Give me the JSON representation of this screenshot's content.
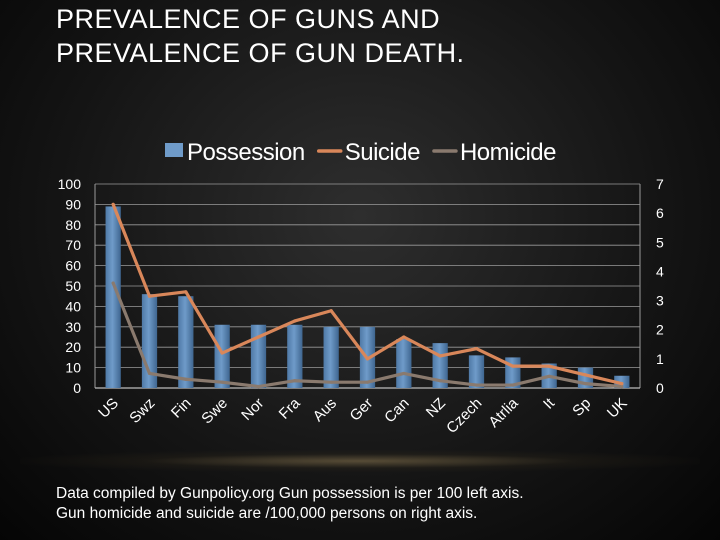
{
  "slide": {
    "title": "PREVALENCE OF GUNS AND PREVALENCE OF GUN DEATH.",
    "caption_line1": "Data compiled by Gunpolicy.org  Gun possession is per 100 left axis.",
    "caption_line2": "Gun homicide and suicide are  /100,000 persons on right axis."
  },
  "colors": {
    "possession": "#6f9bc9",
    "suicide": "#d9875a",
    "homicide": "#8a7a6e",
    "gridline": "#9a9a9a",
    "axis_text": "#ffffff"
  },
  "chart_data": {
    "type": "bar",
    "categories": [
      "US",
      "Swz",
      "Fin",
      "Swe",
      "Nor",
      "Fra",
      "Aus",
      "Ger",
      "Can",
      "NZ",
      "Czech",
      "Atrlia",
      "It",
      "Sp",
      "UK"
    ],
    "series": [
      {
        "name": "Possession",
        "type": "bar",
        "axis": "left",
        "values": [
          89,
          46,
          45,
          31,
          31,
          31,
          30,
          30,
          24,
          22,
          16,
          15,
          12,
          10,
          6
        ]
      },
      {
        "name": "Suicide",
        "type": "line",
        "axis": "right",
        "values": [
          6.3,
          3.15,
          3.3,
          1.2,
          1.75,
          2.3,
          2.65,
          1.0,
          1.75,
          1.1,
          1.35,
          0.75,
          0.75,
          0.45,
          0.15
        ]
      },
      {
        "name": "Homicide",
        "type": "line",
        "axis": "right",
        "values": [
          3.6,
          0.5,
          0.3,
          0.2,
          0.05,
          0.25,
          0.2,
          0.2,
          0.5,
          0.25,
          0.1,
          0.1,
          0.4,
          0.15,
          0.05
        ]
      }
    ],
    "y_left": {
      "min": 0,
      "max": 100,
      "ticks": [
        "0",
        "10",
        "20",
        "30",
        "40",
        "50",
        "60",
        "70",
        "80",
        "90",
        "100"
      ]
    },
    "y_right": {
      "min": 0,
      "max": 7,
      "ticks": [
        "0",
        "1",
        "2",
        "3",
        "4",
        "5",
        "6",
        "7"
      ]
    },
    "legend": {
      "placement": "top-center",
      "items": [
        "Possession",
        "Suicide",
        "Homicide"
      ]
    },
    "grid": true
  }
}
